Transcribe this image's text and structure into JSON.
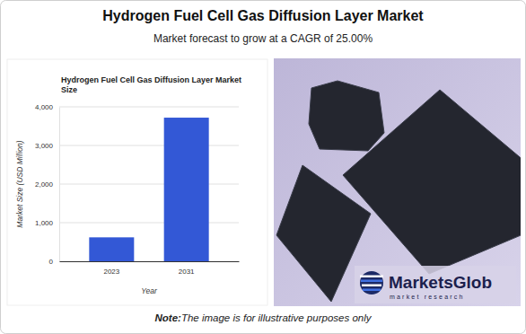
{
  "header": {
    "title": "Hydrogen Fuel Cell Gas Diffusion Layer Market",
    "subtitle": "Market forecast to grow at a CAGR of 25.00%",
    "note_label": "Note:",
    "note": "The image is for illustrative purposes only",
    "logo": "MarketsGlob",
    "logo_tagline": "market research"
  },
  "chart_data": {
    "type": "bar",
    "title": "Hydrogen Fuel Cell Gas Diffusion Layer Market Size",
    "x_label": "Year",
    "y_label": "Market Size (USD Million)",
    "categories": [
      "2023",
      "2031"
    ],
    "values": [
      620,
      3720
    ],
    "color": "#3358d6",
    "ylim": [
      0,
      4000
    ],
    "yticks": [
      0,
      {
        "value": 1000,
        "label": "1,000"
      },
      {
        "value": 2000,
        "label": "2,000"
      },
      {
        "value": 3000,
        "label": "3,000"
      },
      {
        "value": 4000,
        "label": "4,000"
      }
    ],
    "grid": true
  }
}
